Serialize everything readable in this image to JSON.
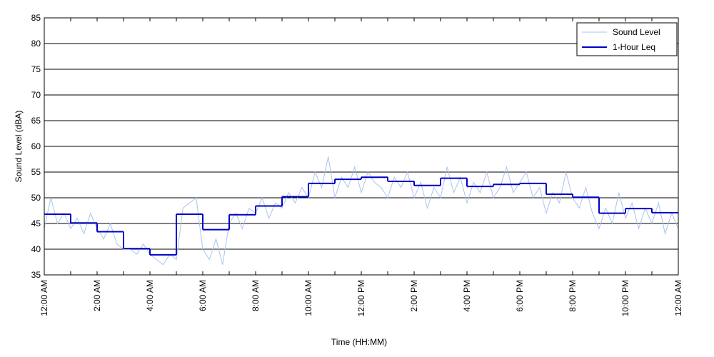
{
  "chart_data": {
    "type": "line",
    "xlabel": "Time (HH:MM)",
    "ylabel": "Sound Level (dBA)",
    "xlim": [
      0,
      24
    ],
    "ylim": [
      35,
      85
    ],
    "yticks": [
      35,
      40,
      45,
      50,
      55,
      60,
      65,
      70,
      75,
      80,
      85
    ],
    "xticks": [
      {
        "value": 0,
        "label": "12:00 AM"
      },
      {
        "value": 2,
        "label": "2:00 AM"
      },
      {
        "value": 4,
        "label": "4:00 AM"
      },
      {
        "value": 6,
        "label": "6:00 AM"
      },
      {
        "value": 8,
        "label": "8:00 AM"
      },
      {
        "value": 10,
        "label": "10:00 AM"
      },
      {
        "value": 12,
        "label": "12:00 PM"
      },
      {
        "value": 14,
        "label": "2:00 PM"
      },
      {
        "value": 16,
        "label": "4:00 PM"
      },
      {
        "value": 18,
        "label": "6:00 PM"
      },
      {
        "value": 20,
        "label": "8:00 PM"
      },
      {
        "value": 22,
        "label": "10:00 PM"
      },
      {
        "value": 24,
        "label": "12:00 AM"
      }
    ],
    "xminorticks": [
      1,
      3,
      5,
      7,
      9,
      11,
      13,
      15,
      17,
      19,
      21,
      23
    ],
    "grid": true,
    "legend": "upper right",
    "series": [
      {
        "name": "Sound Level",
        "color": "#a9c3f0",
        "step": false,
        "x": [
          0,
          0.25,
          0.5,
          0.75,
          1,
          1.25,
          1.5,
          1.75,
          2,
          2.25,
          2.5,
          2.75,
          3,
          3.25,
          3.5,
          3.75,
          4,
          4.25,
          4.5,
          4.75,
          5,
          5.25,
          5.5,
          5.75,
          6,
          6.25,
          6.5,
          6.75,
          7,
          7.25,
          7.5,
          7.75,
          8,
          8.25,
          8.5,
          8.75,
          9,
          9.25,
          9.5,
          9.75,
          10,
          10.25,
          10.5,
          10.75,
          11,
          11.25,
          11.5,
          11.75,
          12,
          12.25,
          12.5,
          12.75,
          13,
          13.25,
          13.5,
          13.75,
          14,
          14.25,
          14.5,
          14.75,
          15,
          15.25,
          15.5,
          15.75,
          16,
          16.25,
          16.5,
          16.75,
          17,
          17.25,
          17.5,
          17.75,
          18,
          18.25,
          18.5,
          18.75,
          19,
          19.25,
          19.5,
          19.75,
          20,
          20.25,
          20.5,
          20.75,
          21,
          21.25,
          21.5,
          21.75,
          22,
          22.25,
          22.5,
          22.75,
          23,
          23.25,
          23.5,
          23.75,
          24
        ],
        "values": [
          44,
          50,
          45,
          47,
          44,
          46,
          43,
          47,
          44,
          42,
          45,
          41,
          40,
          40,
          39,
          41,
          39,
          38,
          37,
          39,
          38,
          48,
          49,
          50,
          40,
          38,
          42,
          37,
          45,
          47,
          44,
          48,
          47,
          50,
          46,
          49,
          48,
          51,
          49,
          52,
          50,
          55,
          52,
          58,
          50,
          54,
          52,
          56,
          51,
          55,
          53,
          52,
          50,
          54,
          52,
          55,
          50,
          53,
          48,
          52,
          50,
          56,
          51,
          54,
          49,
          53,
          51,
          55,
          50,
          52,
          56,
          51,
          53,
          55,
          50,
          52,
          47,
          51,
          49,
          55,
          50,
          48,
          52,
          47,
          44,
          48,
          45,
          51,
          46,
          49,
          44,
          48,
          45,
          49,
          43,
          47,
          44
        ]
      },
      {
        "name": "1-Hour Leq",
        "color": "#0000c8",
        "step": true,
        "x": [
          0,
          1,
          2,
          3,
          4,
          5,
          6,
          7,
          8,
          9,
          10,
          11,
          12,
          13,
          14,
          15,
          16,
          17,
          18,
          19,
          20,
          21,
          22,
          23
        ],
        "values": [
          46.8,
          45.1,
          43.4,
          40.1,
          38.9,
          46.8,
          43.8,
          46.7,
          48.4,
          50.2,
          52.8,
          53.6,
          54.0,
          53.2,
          52.4,
          53.8,
          52.2,
          52.6,
          52.8,
          50.7,
          50.1,
          47.0,
          47.9,
          47.1
        ]
      }
    ]
  }
}
